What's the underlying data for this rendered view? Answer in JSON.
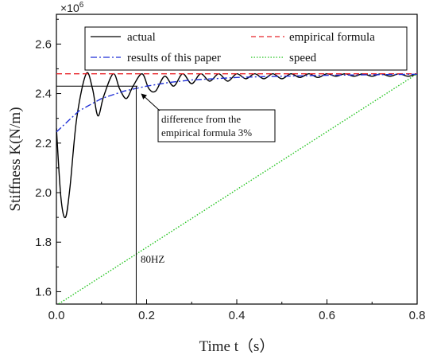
{
  "chart_data": {
    "type": "line",
    "xlabel": "Time t（s）",
    "ylabel": "Stiffness K(N/m)",
    "y_multiplier": "×10",
    "y_multiplier_exp": "6",
    "xlim": [
      0,
      0.8
    ],
    "ylim": [
      1.55,
      2.72
    ],
    "x_ticks": [
      0.0,
      0.2,
      0.4,
      0.6,
      0.8
    ],
    "x_tick_labels": [
      "0.0",
      "0.2",
      "0.4",
      "0.6",
      "0.8"
    ],
    "y_ticks": [
      1.6,
      1.8,
      2.0,
      2.2,
      2.4,
      2.6
    ],
    "y_tick_labels": [
      "1.6",
      "1.8",
      "2.0",
      "2.2",
      "2.4",
      "2.6"
    ],
    "legend_position": "top",
    "series": [
      {
        "name": "actual",
        "color": "#000000",
        "style": "solid",
        "x": [
          0.0,
          0.01,
          0.02,
          0.03,
          0.045,
          0.066,
          0.08,
          0.092,
          0.105,
          0.126,
          0.14,
          0.155,
          0.17,
          0.19,
          0.205,
          0.22,
          0.24,
          0.26,
          0.28,
          0.3,
          0.32,
          0.34,
          0.36,
          0.38,
          0.4,
          0.42,
          0.44,
          0.46,
          0.48,
          0.5,
          0.52,
          0.54,
          0.56,
          0.58,
          0.6,
          0.62,
          0.64,
          0.66,
          0.68,
          0.7,
          0.72,
          0.74,
          0.76,
          0.78,
          0.8
        ],
        "y": [
          2.26,
          1.98,
          1.9,
          2.02,
          2.3,
          2.48,
          2.42,
          2.31,
          2.39,
          2.48,
          2.42,
          2.38,
          2.43,
          2.48,
          2.42,
          2.41,
          2.47,
          2.43,
          2.48,
          2.44,
          2.48,
          2.45,
          2.48,
          2.45,
          2.48,
          2.46,
          2.48,
          2.46,
          2.48,
          2.46,
          2.48,
          2.465,
          2.48,
          2.465,
          2.48,
          2.47,
          2.48,
          2.47,
          2.48,
          2.47,
          2.48,
          2.47,
          2.48,
          2.47,
          2.48
        ]
      },
      {
        "name": "empirical formula",
        "color": "#e8242a",
        "style": "dashed",
        "x": [
          0.0,
          0.8
        ],
        "y": [
          2.48,
          2.48
        ]
      },
      {
        "name": "results of this paper",
        "color": "#1f2fd6",
        "style": "dashdot",
        "x": [
          0.0,
          0.05,
          0.1,
          0.15,
          0.2,
          0.25,
          0.3,
          0.35,
          0.4,
          0.45,
          0.5,
          0.55,
          0.6,
          0.65,
          0.7,
          0.75,
          0.8
        ],
        "y": [
          2.245,
          2.33,
          2.38,
          2.41,
          2.43,
          2.445,
          2.455,
          2.46,
          2.465,
          2.468,
          2.47,
          2.472,
          2.474,
          2.475,
          2.476,
          2.477,
          2.478
        ]
      },
      {
        "name": "speed",
        "color": "#22c41e",
        "style": "dotted",
        "x": [
          0.0,
          0.8
        ],
        "y": [
          1.545,
          2.48
        ]
      }
    ],
    "annotations": [
      {
        "text_lines": [
          "difference from the",
          "empirical formula 3%"
        ],
        "arrow_to": [
          0.18,
          2.43
        ]
      },
      {
        "text": "80HZ",
        "at_x": 0.177,
        "at_y": 1.75
      }
    ],
    "reference_lines": {
      "horizontal_y": 2.43,
      "horizontal_x_range": [
        0.0,
        0.18
      ],
      "vertical_x": 0.177,
      "vertical_y_range": [
        1.55,
        2.43
      ]
    }
  }
}
